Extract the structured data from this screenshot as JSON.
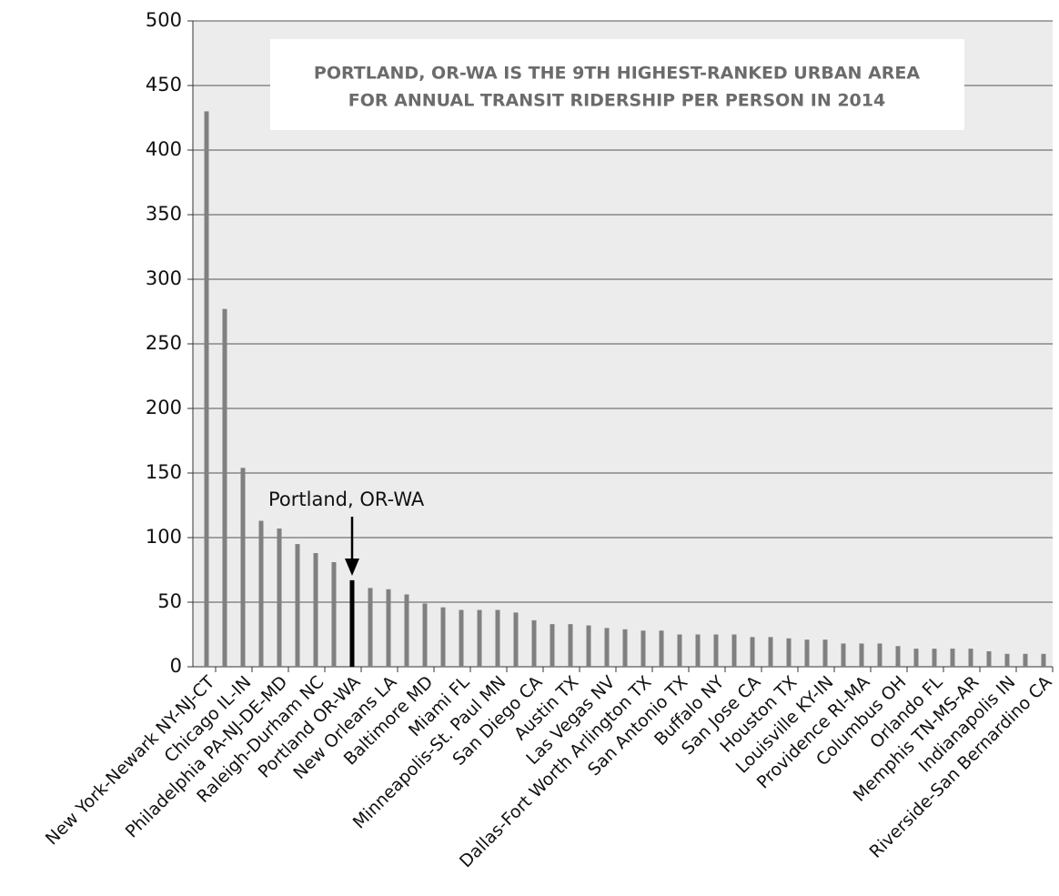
{
  "chart_data": {
    "type": "bar",
    "title": [
      "PORTLAND, OR-WA IS THE 9TH HIGHEST-RANKED URBAN AREA",
      "FOR ANNUAL TRANSIT RIDERSHIP PER PERSON IN 2014"
    ],
    "annotation": "Portland, OR-WA",
    "categories": [
      "New York-Newark NY-NJ-CT",
      null,
      "Chicago IL-IN",
      null,
      "Philadelphia PA-NJ-DE-MD",
      null,
      "Raleigh-Durham NC",
      null,
      "Portland OR-WA",
      null,
      "New Orleans LA",
      null,
      "Baltimore MD",
      null,
      "Miami FL",
      null,
      "Minneapolis-St. Paul MN",
      null,
      "San Diego CA",
      null,
      "Austin TX",
      null,
      "Las Vegas NV",
      null,
      "Dallas-Fort Worth Arlington TX",
      null,
      "San Antonio TX",
      null,
      "Buffalo NY",
      null,
      "San Jose CA",
      null,
      "Houston TX",
      null,
      "Louisville KY-IN",
      null,
      "Providence RI-MA",
      null,
      "Columbus OH",
      null,
      "Orlando FL",
      null,
      "Memphis TN-MS-AR",
      null,
      "Indianapolis IN",
      null,
      "Riverside-San Bernardino CA"
    ],
    "values": [
      430,
      277,
      154,
      113,
      107,
      95,
      88,
      81,
      67,
      61,
      60,
      56,
      49,
      46,
      44,
      44,
      44,
      42,
      36,
      33,
      33,
      32,
      30,
      29,
      28,
      28,
      25,
      25,
      25,
      25,
      23,
      23,
      22,
      21,
      21,
      18,
      18,
      18,
      16,
      14,
      14,
      14,
      14,
      12,
      10,
      10,
      10
    ],
    "colors": [
      "#808080",
      "#808080",
      "#808080",
      "#808080",
      "#808080",
      "#808080",
      "#808080",
      "#808080",
      "#000000",
      "#808080",
      "#808080",
      "#808080",
      "#808080",
      "#808080",
      "#808080",
      "#808080",
      "#808080",
      "#808080",
      "#808080",
      "#808080",
      "#808080",
      "#808080",
      "#808080",
      "#808080",
      "#808080",
      "#808080",
      "#808080",
      "#808080",
      "#808080",
      "#808080",
      "#808080",
      "#808080",
      "#808080",
      "#808080",
      "#808080",
      "#808080",
      "#808080",
      "#808080",
      "#808080",
      "#808080",
      "#808080",
      "#808080",
      "#808080",
      "#808080",
      "#808080",
      "#808080",
      "#808080"
    ],
    "ylim": [
      0,
      500
    ],
    "yticks": [
      0,
      50,
      100,
      150,
      200,
      250,
      300,
      350,
      400,
      450,
      500
    ],
    "grid": true
  }
}
